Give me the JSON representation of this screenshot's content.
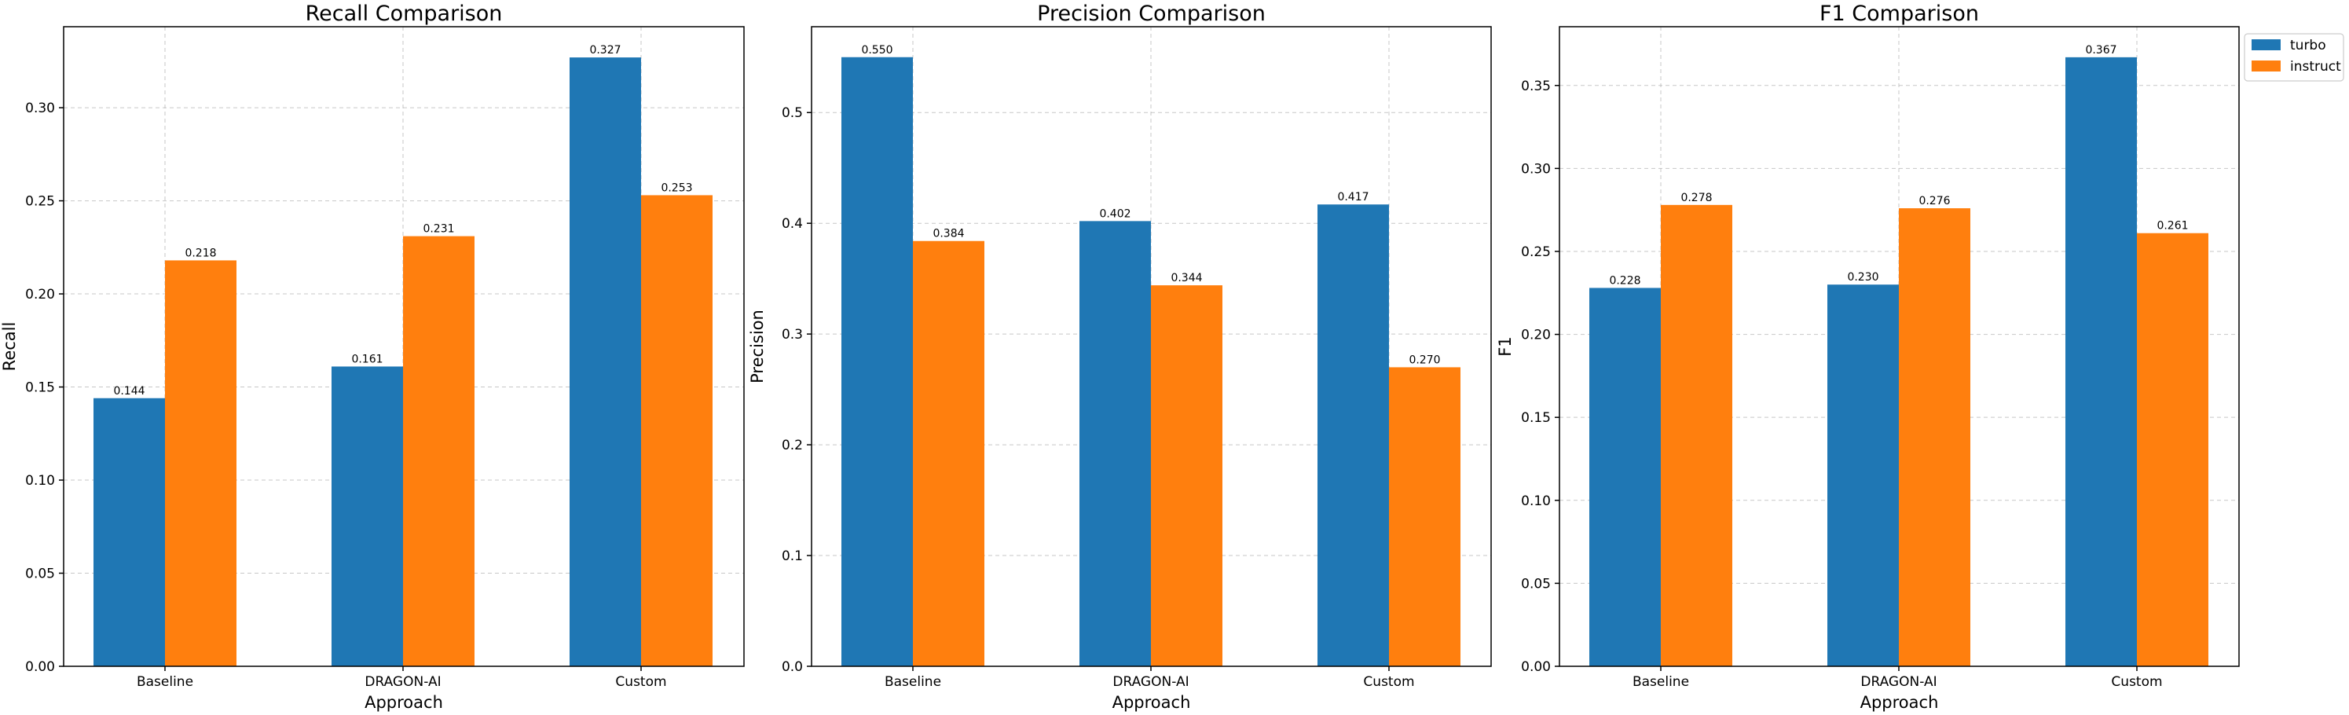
{
  "chart_data": [
    {
      "type": "bar",
      "title": "Recall Comparison",
      "xlabel": "Approach",
      "ylabel": "Recall",
      "categories": [
        "Baseline",
        "DRAGON-AI",
        "Custom"
      ],
      "series": [
        {
          "name": "turbo",
          "values": [
            0.144,
            0.161,
            0.327
          ],
          "labels": [
            "0.144",
            "0.161",
            "0.327"
          ]
        },
        {
          "name": "instruct",
          "values": [
            0.218,
            0.231,
            0.253
          ],
          "labels": [
            "0.218",
            "0.231",
            "0.253"
          ]
        }
      ],
      "ylim": [
        0,
        0.3435
      ],
      "yticks": [
        0.0,
        0.05,
        0.1,
        0.15,
        0.2,
        0.25,
        0.3
      ],
      "ytick_labels": [
        "0.00",
        "0.05",
        "0.10",
        "0.15",
        "0.20",
        "0.25",
        "0.30"
      ],
      "grid": true
    },
    {
      "type": "bar",
      "title": "Precision Comparison",
      "xlabel": "Approach",
      "ylabel": "Precision",
      "categories": [
        "Baseline",
        "DRAGON-AI",
        "Custom"
      ],
      "series": [
        {
          "name": "turbo",
          "values": [
            0.55,
            0.402,
            0.417
          ],
          "labels": [
            "0.550",
            "0.402",
            "0.417"
          ]
        },
        {
          "name": "instruct",
          "values": [
            0.384,
            0.344,
            0.27
          ],
          "labels": [
            "0.384",
            "0.344",
            "0.270"
          ]
        }
      ],
      "ylim": [
        0,
        0.5775
      ],
      "yticks": [
        0.0,
        0.1,
        0.2,
        0.3,
        0.4,
        0.5
      ],
      "ytick_labels": [
        "0.0",
        "0.1",
        "0.2",
        "0.3",
        "0.4",
        "0.5"
      ],
      "grid": true
    },
    {
      "type": "bar",
      "title": "F1 Comparison",
      "xlabel": "Approach",
      "ylabel": "F1",
      "categories": [
        "Baseline",
        "DRAGON-AI",
        "Custom"
      ],
      "series": [
        {
          "name": "turbo",
          "values": [
            0.228,
            0.23,
            0.367
          ],
          "labels": [
            "0.228",
            "0.230",
            "0.367"
          ]
        },
        {
          "name": "instruct",
          "values": [
            0.278,
            0.276,
            0.261
          ],
          "labels": [
            "0.278",
            "0.276",
            "0.261"
          ]
        }
      ],
      "ylim": [
        0,
        0.3854
      ],
      "yticks": [
        0.0,
        0.05,
        0.1,
        0.15,
        0.2,
        0.25,
        0.3,
        0.35
      ],
      "ytick_labels": [
        "0.00",
        "0.05",
        "0.10",
        "0.15",
        "0.20",
        "0.25",
        "0.30",
        "0.35"
      ],
      "grid": true
    }
  ],
  "legend": {
    "placement": "outside-top-right",
    "items": [
      {
        "name": "turbo",
        "color": "#1f77b4"
      },
      {
        "name": "instruct",
        "color": "#ff7f0e"
      }
    ]
  },
  "colors": {
    "turbo": "#1f77b4",
    "instruct": "#ff7f0e"
  }
}
